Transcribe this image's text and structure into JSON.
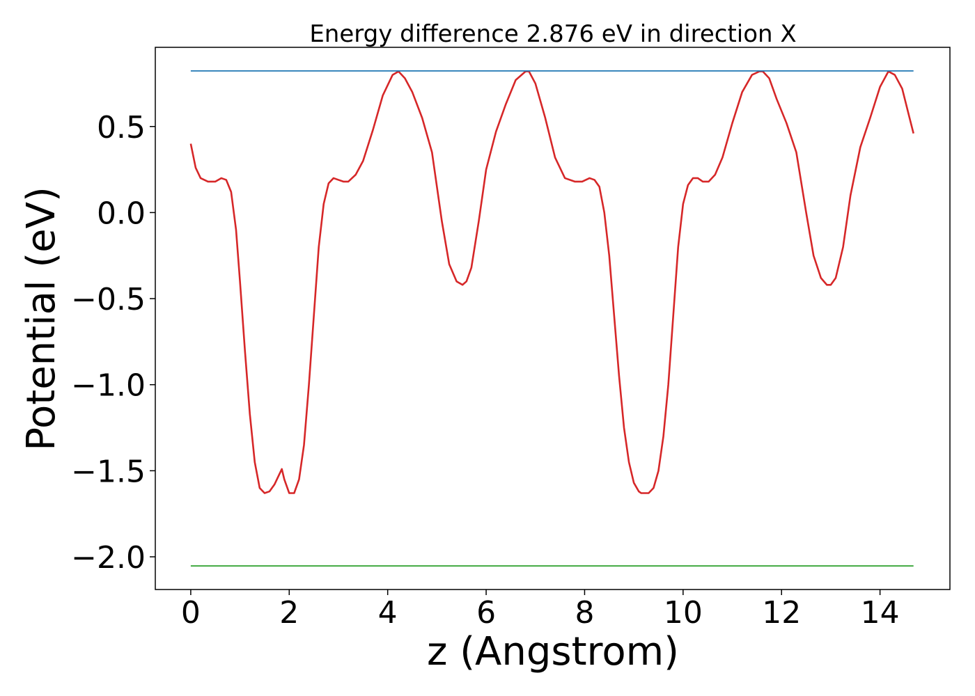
{
  "chart_data": {
    "type": "line",
    "title": "Energy difference 2.876 eV in direction X",
    "xlabel": "z (Angstrom)",
    "ylabel": "Potential (eV)",
    "xlim": [
      -0.72,
      15.42
    ],
    "ylim": [
      -2.19,
      0.96
    ],
    "x_ticks": [
      0,
      2,
      4,
      6,
      8,
      10,
      12,
      14
    ],
    "x_tick_labels": [
      "0",
      "2",
      "4",
      "6",
      "8",
      "10",
      "12",
      "14"
    ],
    "y_ticks": [
      0.5,
      0.0,
      -0.5,
      -1.0,
      -1.5,
      -2.0
    ],
    "y_tick_labels": [
      "0.5",
      "0.0",
      "−0.5",
      "−1.0",
      "−1.5",
      "−2.0"
    ],
    "grid": false,
    "series": [
      {
        "color": "#d62728",
        "x": [
          0.0,
          0.1,
          0.2,
          0.35,
          0.5,
          0.62,
          0.72,
          0.82,
          0.92,
          1.0,
          1.1,
          1.2,
          1.3,
          1.4,
          1.5,
          1.6,
          1.7,
          1.8,
          1.85,
          1.9,
          2.0,
          2.1,
          2.2,
          2.3,
          2.4,
          2.5,
          2.6,
          2.7,
          2.8,
          2.9,
          3.0,
          3.1,
          3.2,
          3.35,
          3.5,
          3.7,
          3.9,
          4.1,
          4.22,
          4.35,
          4.5,
          4.7,
          4.9,
          5.1,
          5.25,
          5.4,
          5.52,
          5.6,
          5.7,
          5.85,
          6.0,
          6.2,
          6.4,
          6.6,
          6.8,
          6.87,
          7.0,
          7.2,
          7.4,
          7.6,
          7.8,
          7.95,
          8.1,
          8.2,
          8.3,
          8.4,
          8.5,
          8.6,
          8.7,
          8.8,
          8.9,
          9.0,
          9.1,
          9.15,
          9.23,
          9.3,
          9.4,
          9.5,
          9.6,
          9.7,
          9.8,
          9.9,
          10.0,
          10.1,
          10.2,
          10.3,
          10.4,
          10.52,
          10.65,
          10.8,
          11.0,
          11.2,
          11.4,
          11.55,
          11.62,
          11.75,
          11.9,
          12.1,
          12.3,
          12.5,
          12.65,
          12.8,
          12.92,
          13.0,
          13.1,
          13.25,
          13.4,
          13.6,
          13.8,
          14.0,
          14.17,
          14.3,
          14.45,
          14.6,
          14.68
        ],
        "values": [
          0.4,
          0.26,
          0.2,
          0.18,
          0.18,
          0.2,
          0.19,
          0.12,
          -0.1,
          -0.4,
          -0.8,
          -1.17,
          -1.45,
          -1.6,
          -1.63,
          -1.62,
          -1.58,
          -1.52,
          -1.49,
          -1.55,
          -1.63,
          -1.63,
          -1.55,
          -1.35,
          -1.0,
          -0.6,
          -0.2,
          0.05,
          0.17,
          0.2,
          0.19,
          0.18,
          0.18,
          0.22,
          0.3,
          0.48,
          0.68,
          0.8,
          0.82,
          0.78,
          0.7,
          0.55,
          0.35,
          -0.05,
          -0.3,
          -0.4,
          -0.42,
          -0.4,
          -0.32,
          -0.05,
          0.25,
          0.47,
          0.63,
          0.77,
          0.82,
          0.82,
          0.75,
          0.55,
          0.32,
          0.2,
          0.18,
          0.18,
          0.2,
          0.19,
          0.15,
          0.0,
          -0.25,
          -0.6,
          -0.95,
          -1.25,
          -1.45,
          -1.57,
          -1.62,
          -1.63,
          -1.63,
          -1.63,
          -1.6,
          -1.5,
          -1.3,
          -1.0,
          -0.6,
          -0.2,
          0.05,
          0.16,
          0.2,
          0.2,
          0.18,
          0.18,
          0.22,
          0.32,
          0.52,
          0.7,
          0.8,
          0.82,
          0.82,
          0.78,
          0.66,
          0.52,
          0.35,
          0.0,
          -0.25,
          -0.38,
          -0.42,
          -0.42,
          -0.38,
          -0.2,
          0.1,
          0.38,
          0.55,
          0.73,
          0.82,
          0.8,
          0.72,
          0.55,
          0.46
        ]
      },
      {
        "color": "#1f77b4",
        "x": [
          0.0,
          14.68
        ],
        "values": [
          0.823,
          0.823
        ]
      },
      {
        "color": "#2ca02c",
        "x": [
          0.0,
          14.68
        ],
        "values": [
          -2.053,
          -2.053
        ]
      }
    ]
  }
}
